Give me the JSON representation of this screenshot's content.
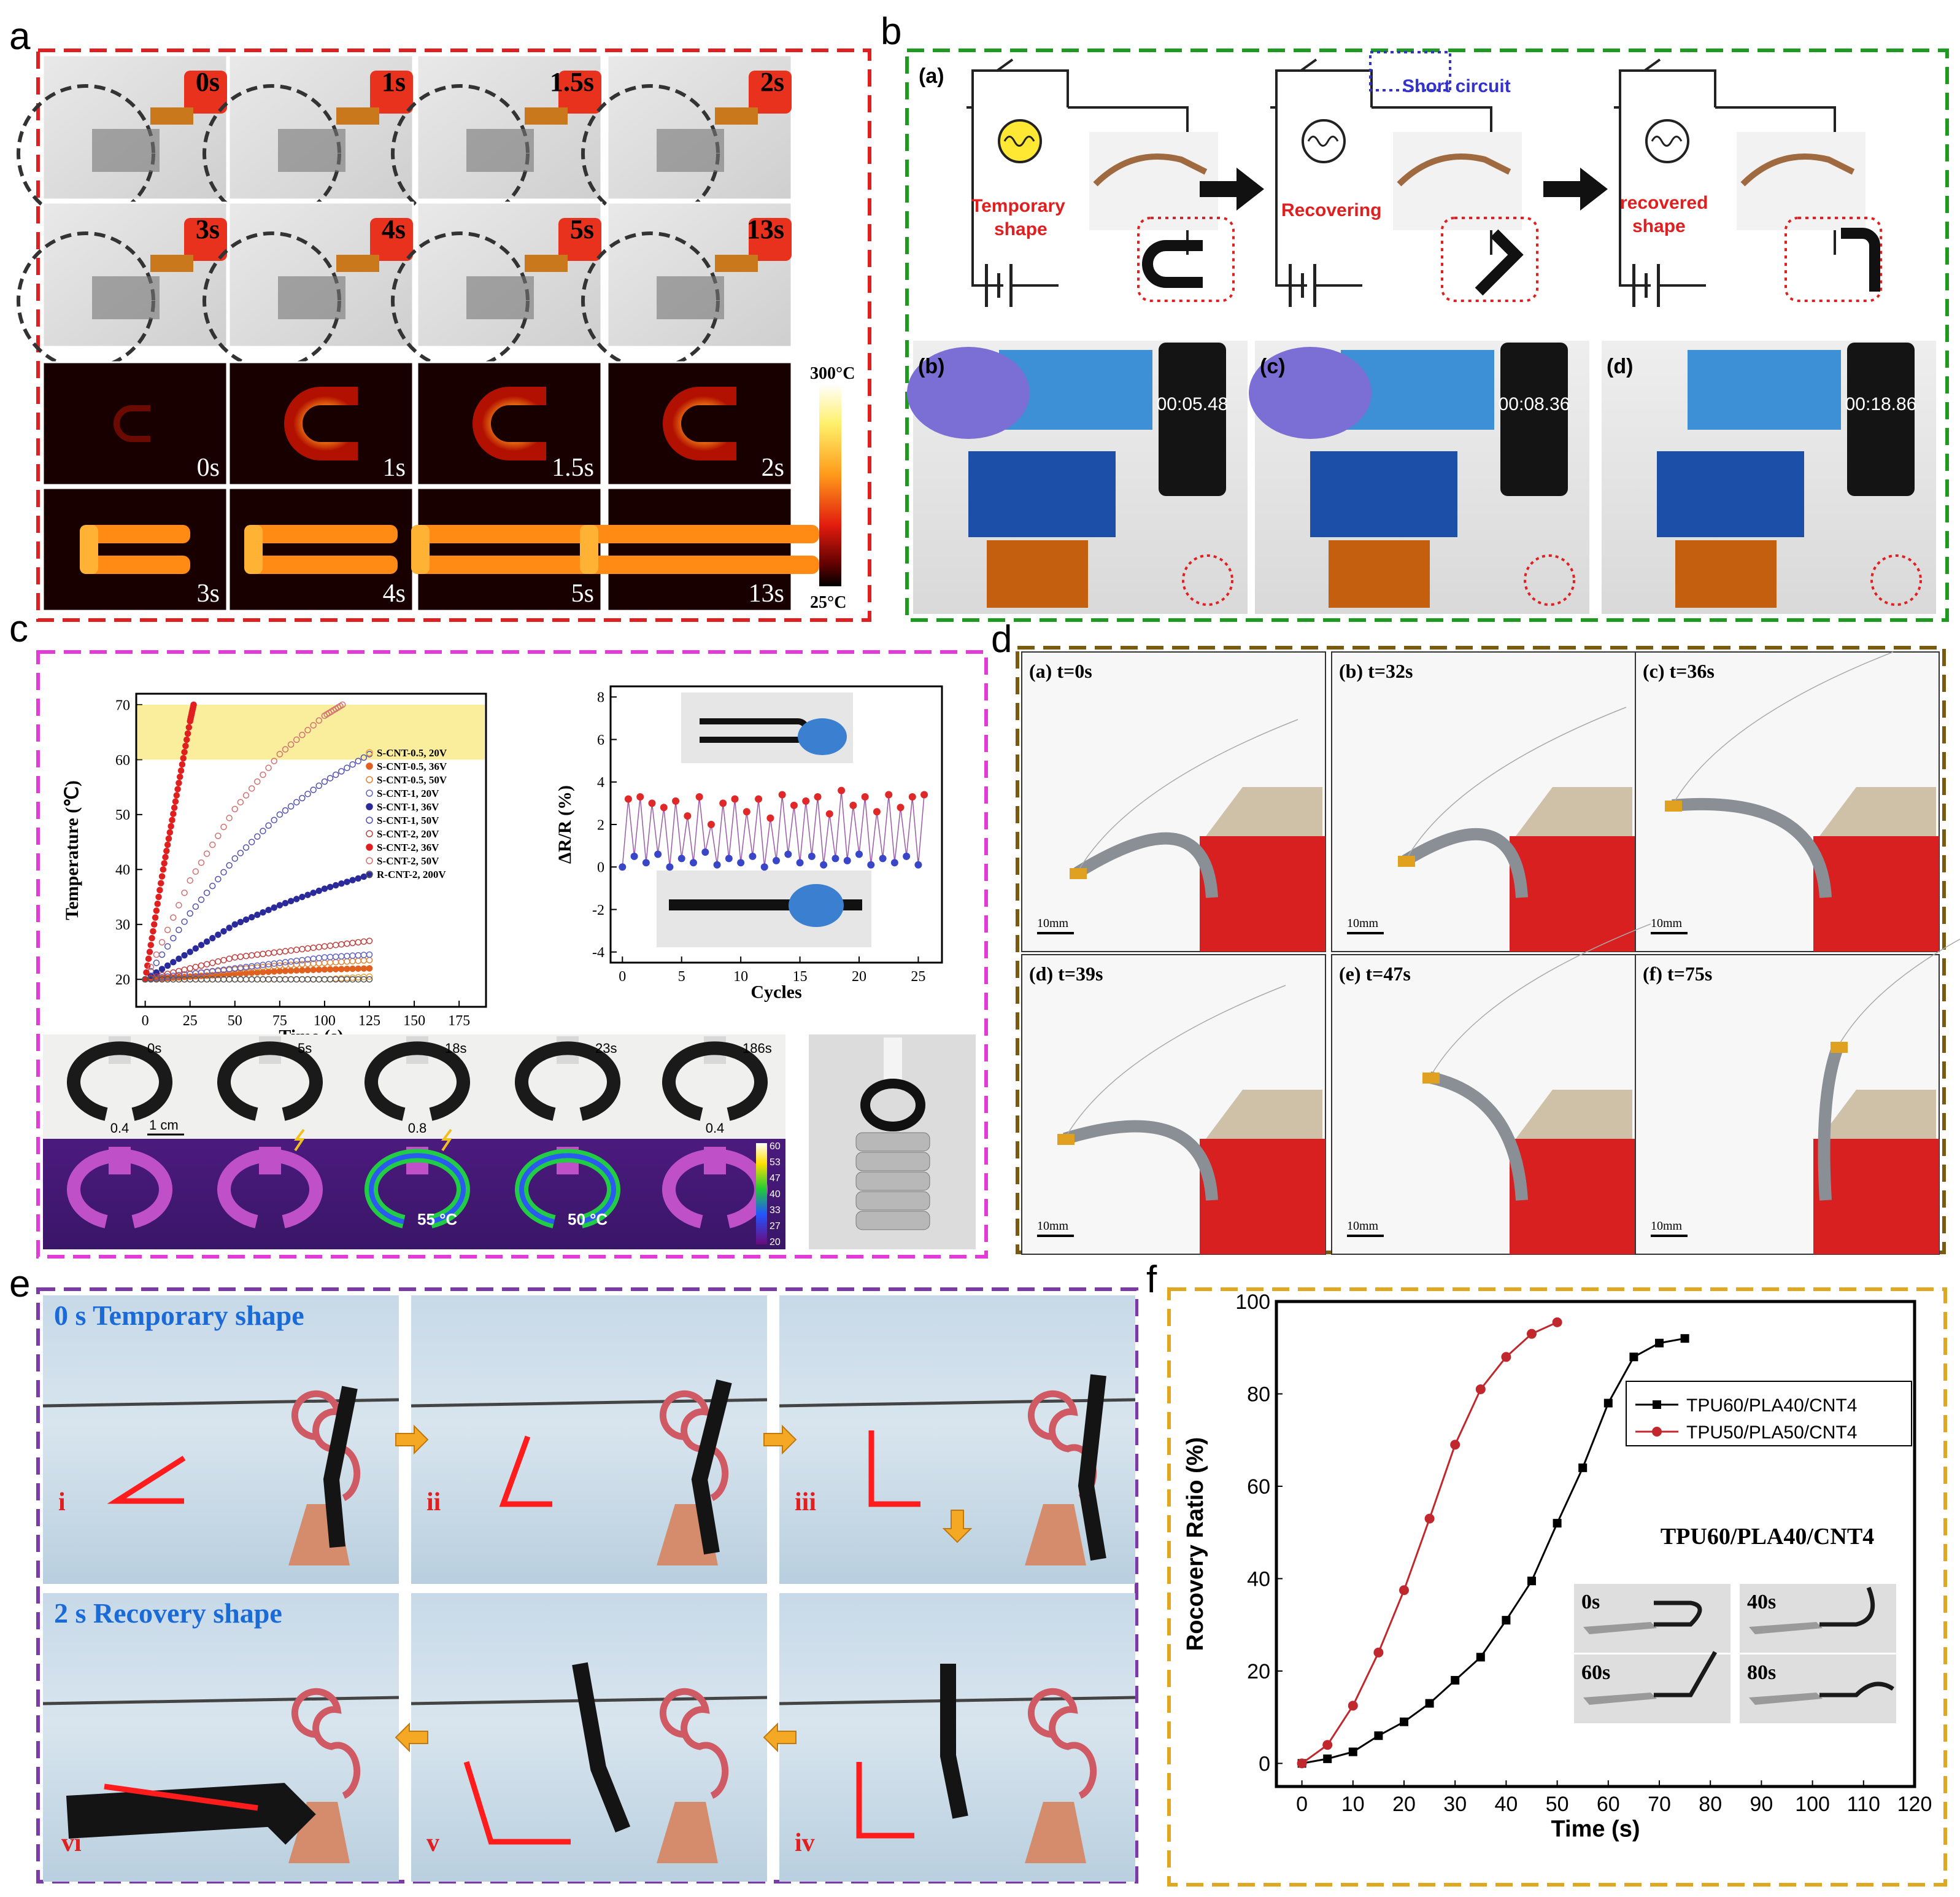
{
  "panel_letters": {
    "a": "a",
    "b": "b",
    "c": "c",
    "d": "d",
    "e": "e",
    "f": "f"
  },
  "panel_a": {
    "photo_times": [
      "0s",
      "1s",
      "1.5s",
      "2s",
      "3s",
      "4s",
      "5s",
      "13s"
    ],
    "thermal_times": [
      "0s",
      "1s",
      "1.5s",
      "2s",
      "3s",
      "4s",
      "5s",
      "13s"
    ],
    "colorbar_max": "300°C",
    "colorbar_min": "25°C"
  },
  "panel_b": {
    "label_a": "(a)",
    "short_circuit": "Short circuit",
    "temporary_shape": "Temporary shape",
    "recovering": "Recovering",
    "recovered_shape": "recovered shape",
    "photo_labels": [
      "(b)",
      "(c)",
      "(d)"
    ],
    "timer_readings": [
      "00:05.48",
      "00:08.36",
      "00:18.86"
    ]
  },
  "panel_c": {
    "chart_left_legend": [
      "S-CNT-0.5, 20V",
      "S-CNT-0.5, 36V",
      "S-CNT-0.5, 50V",
      "S-CNT-1, 20V",
      "S-CNT-1, 36V",
      "S-CNT-1, 50V",
      "S-CNT-2, 20V",
      "S-CNT-2, 36V",
      "S-CNT-2, 50V",
      "R-CNT-2, 200V"
    ],
    "strip_times": [
      "0s",
      "5s",
      "18s",
      "23s",
      "186s"
    ],
    "strip_gaps": [
      "0.4",
      "0.8",
      "0.4"
    ],
    "scale_label": "1 cm",
    "thermal_temps": [
      "55 °C",
      "50 °C"
    ],
    "colorbar_ticks": [
      "60",
      "53",
      "47",
      "40",
      "33",
      "27",
      "20"
    ]
  },
  "panel_d": {
    "frames": [
      "(a) t=0s",
      "(b) t=32s",
      "(c) t=36s",
      "(d) t=39s",
      "(e) t=47s",
      "(f) t=75s"
    ],
    "scale": "10mm"
  },
  "panel_e": {
    "temporary": "0 s   Temporary shape",
    "recovery": "2 s   Recovery shape",
    "roman": [
      "i",
      "ii",
      "iii",
      "iv",
      "v",
      "vi"
    ]
  },
  "panel_f": {
    "inset_title": "TPU60/PLA40/CNT4",
    "inset_times": [
      "0s",
      "40s",
      "60s",
      "80s"
    ]
  },
  "chart_data": [
    {
      "id": "c-temperature",
      "type": "scatter",
      "xlabel": "Time (s)",
      "ylabel": "Temperature (℃)",
      "xlim": [
        -5,
        190
      ],
      "ylim": [
        15,
        72
      ],
      "xticks": [
        0,
        25,
        50,
        75,
        100,
        125,
        150,
        175
      ],
      "yticks": [
        20,
        30,
        40,
        50,
        60,
        70
      ],
      "band": [
        60,
        70
      ],
      "series": [
        {
          "name": "S-CNT-0.5, 20V",
          "x": [
            0,
            25,
            50,
            75,
            100,
            125
          ],
          "y": [
            20,
            20,
            20,
            20,
            20,
            20.5
          ]
        },
        {
          "name": "S-CNT-0.5, 36V",
          "x": [
            0,
            25,
            50,
            75,
            100,
            125
          ],
          "y": [
            20,
            20.5,
            21,
            21.5,
            21.8,
            22
          ]
        },
        {
          "name": "S-CNT-0.5, 50V",
          "x": [
            0,
            25,
            50,
            75,
            100,
            125
          ],
          "y": [
            20,
            21,
            21.8,
            22.5,
            23,
            23.5
          ]
        },
        {
          "name": "S-CNT-1, 20V",
          "x": [
            0,
            25,
            50,
            75,
            100,
            125
          ],
          "y": [
            20,
            21,
            22,
            23,
            24,
            24.5
          ]
        },
        {
          "name": "S-CNT-1, 36V",
          "x": [
            0,
            25,
            50,
            75,
            100,
            125
          ],
          "y": [
            20,
            25,
            30,
            33.5,
            36.5,
            39
          ]
        },
        {
          "name": "S-CNT-1, 50V",
          "x": [
            0,
            25,
            50,
            75,
            100,
            125
          ],
          "y": [
            20,
            32,
            42,
            50,
            56,
            61
          ]
        },
        {
          "name": "S-CNT-2, 20V",
          "x": [
            0,
            25,
            50,
            75,
            100,
            125
          ],
          "y": [
            20,
            22,
            24,
            25,
            26,
            27
          ]
        },
        {
          "name": "S-CNT-2, 36V",
          "x": [
            0,
            5,
            10,
            15,
            20,
            25,
            27
          ],
          "y": [
            20,
            30,
            40,
            49,
            58,
            67,
            70
          ]
        },
        {
          "name": "S-CNT-2, 50V",
          "x": [
            0,
            25,
            50,
            75,
            100,
            110
          ],
          "y": [
            20,
            38,
            51,
            61,
            68,
            70
          ]
        },
        {
          "name": "R-CNT-2, 200V",
          "x": [
            0,
            25,
            50,
            75,
            100,
            125
          ],
          "y": [
            20,
            20,
            20,
            20,
            20,
            20
          ]
        }
      ]
    },
    {
      "id": "c-resistance",
      "type": "line",
      "xlabel": "Cycles",
      "ylabel": "ΔR/R (%)",
      "xlim": [
        -1,
        27
      ],
      "ylim": [
        -4.5,
        8.5
      ],
      "xticks": [
        0,
        5,
        10,
        15,
        20,
        25
      ],
      "yticks": [
        -4,
        -2,
        0,
        2,
        4,
        6,
        8
      ],
      "peaks": [
        3.2,
        3.3,
        3.0,
        2.8,
        3.1,
        2.4,
        3.3,
        2.0,
        3.0,
        3.2,
        2.6,
        3.2,
        2.3,
        3.4,
        2.9,
        3.1,
        3.3,
        2.5,
        3.6,
        2.9,
        3.3,
        2.6,
        3.4,
        2.8,
        3.3,
        3.4
      ],
      "valleys": [
        0.0,
        0.5,
        0.2,
        0.6,
        0.0,
        0.4,
        0.2,
        0.7,
        0.1,
        0.4,
        0.2,
        0.5,
        0.0,
        0.3,
        0.6,
        0.2,
        0.5,
        0.1,
        0.4,
        0.3,
        0.6,
        0.1,
        0.4,
        0.2,
        0.5,
        0.1
      ]
    },
    {
      "id": "f-recovery",
      "type": "line",
      "xlabel": "Time (s)",
      "ylabel": "Rocovery Ratio (%)",
      "xlim": [
        -5,
        120
      ],
      "ylim": [
        -5,
        100
      ],
      "xticks": [
        0,
        10,
        20,
        30,
        40,
        50,
        60,
        70,
        80,
        90,
        100,
        110,
        120
      ],
      "yticks": [
        0,
        20,
        40,
        60,
        80,
        100
      ],
      "series": [
        {
          "name": "TPU60/PLA40/CNT4",
          "color": "#000000",
          "marker": "square",
          "x": [
            0,
            5,
            10,
            15,
            20,
            25,
            30,
            35,
            40,
            45,
            50,
            55,
            60,
            65,
            70,
            75
          ],
          "y": [
            0,
            1,
            2.5,
            6,
            9,
            13,
            18,
            23,
            31,
            39.5,
            52,
            64,
            78,
            88,
            91,
            92
          ]
        },
        {
          "name": "TPU50/PLA50/CNT4",
          "color": "#c0282d",
          "marker": "circle",
          "x": [
            0,
            5,
            10,
            15,
            20,
            25,
            30,
            35,
            40,
            45,
            50
          ],
          "y": [
            0,
            4,
            12.5,
            24,
            37.5,
            53,
            69,
            81,
            88,
            93,
            95.5
          ]
        }
      ]
    }
  ]
}
